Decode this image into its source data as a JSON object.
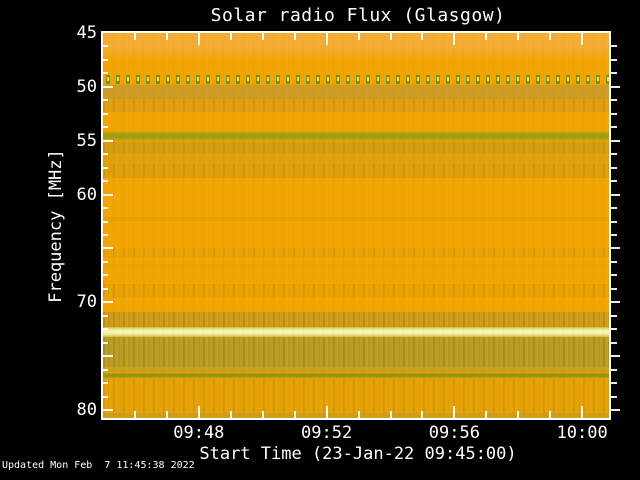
{
  "title": "Solar radio Flux (Glasgow)",
  "x_axis": {
    "title": "Start Time (23-Jan-22 09:45:00)"
  },
  "y_axis": {
    "title": "Frequency [MHz]"
  },
  "footer": {
    "updated": "Updated Mon Feb  7 11:45:38 2022"
  },
  "colors": {
    "page_background": "#000000",
    "text": "#FFFFFF",
    "frame": "#FFFFFF",
    "plot_background": "#F3A504"
  },
  "chart_data": {
    "type": "heatmap",
    "subtype": "radio-spectrogram",
    "title": "Solar radio Flux (Glasgow)",
    "xlabel": "Start Time (23-Jan-22 09:45:00)",
    "ylabel": "Frequency [MHz]",
    "x_start_hhmm": "09:45",
    "x_range_minutes": [
      0,
      15.84
    ],
    "y_range_mhz": [
      45,
      80.74
    ],
    "background_color": "#F3A504",
    "x_ticks": {
      "major": [
        {
          "m": 3,
          "label": "09:48"
        },
        {
          "m": 7,
          "label": "09:52"
        },
        {
          "m": 11,
          "label": "09:56"
        },
        {
          "m": 15,
          "label": "10:00"
        }
      ],
      "minor": [
        1,
        2,
        4,
        5,
        6,
        8,
        9,
        10,
        12,
        13,
        14
      ]
    },
    "y_ticks": {
      "minor_step_mhz": 1.25,
      "major_step_mhz": 5
    },
    "y_labels": [
      {
        "f": 45,
        "label": "45"
      },
      {
        "f": 50,
        "label": "50"
      },
      {
        "f": 55,
        "label": "55"
      },
      {
        "f": 60,
        "label": "60"
      },
      {
        "f": 70,
        "label": "70"
      },
      {
        "f": 80,
        "label": "80"
      }
    ],
    "bands": [
      {
        "name": "bright-upper-band",
        "f1": 45.0,
        "f2": 47.5,
        "type": "solid",
        "color": "#F7AD33",
        "fade": "down"
      },
      {
        "name": "dotted-interference-line",
        "f1": 48.9,
        "f2": 49.73,
        "type": "dots",
        "color": "#7C8C14",
        "color2": "#E3E94E"
      },
      {
        "name": "olive-band-50mhz",
        "f1": 49.83,
        "f2": 51.13,
        "type": "solid",
        "color": "#CF9C26"
      },
      {
        "name": "striped-band-51mhz",
        "f1": 51.13,
        "f2": 52.33,
        "type": "stripes",
        "color": "#E49F10"
      },
      {
        "name": "green-line-55mhz",
        "f1": 54.0,
        "f2": 55.1,
        "type": "solid",
        "color": "#9CA00F",
        "fade": "both"
      },
      {
        "name": "dark-band-55mhz",
        "f1": 55.1,
        "f2": 56.23,
        "type": "stripes",
        "color": "#D89E12"
      },
      {
        "name": "faint-band-56mhz",
        "f1": 56.23,
        "f2": 57.16,
        "type": "solid",
        "color": "#E2A10B"
      },
      {
        "name": "faint-striped-band-57mhz",
        "f1": 57.16,
        "f2": 58.46,
        "type": "stripes",
        "color": "#E0A00C"
      },
      {
        "name": "faint-line-62mhz",
        "f1": 62.08,
        "f2": 62.45,
        "type": "solid",
        "color": "#E5A107"
      },
      {
        "name": "faint-band-65mhz",
        "f1": 64.96,
        "f2": 65.8,
        "type": "stripes",
        "color": "#ECA303"
      },
      {
        "name": "faint-line-66mhz",
        "f1": 66.45,
        "f2": 66.82,
        "type": "solid",
        "color": "#EAA205"
      },
      {
        "name": "faint-band-69mhz",
        "f1": 68.3,
        "f2": 69.6,
        "type": "stripes",
        "color": "#EBA304"
      },
      {
        "name": "pre-band-71mhz",
        "f1": 70.9,
        "f2": 72.29,
        "type": "stripes",
        "color": "#D49D18",
        "strong": true
      },
      {
        "name": "bright-yellow-line-72mhz",
        "f1": 72.29,
        "f2": 73.22,
        "type": "brightline",
        "color": "#F6F6B4",
        "color2": "#C2C436"
      },
      {
        "name": "olive-striped-band-74mhz",
        "f1": 73.22,
        "f2": 76.01,
        "type": "stripes",
        "color": "#BB9E26",
        "strong": true
      },
      {
        "name": "transition-band-76mhz",
        "f1": 76.01,
        "f2": 76.45,
        "type": "solid",
        "color": "#CCA01A"
      },
      {
        "name": "dark-green-line-77mhz",
        "f1": 76.45,
        "f2": 77.15,
        "type": "solid",
        "color": "#8F9715",
        "fade": "both"
      },
      {
        "name": "lower-striped-band-78mhz",
        "f1": 77.15,
        "f2": 80.28,
        "type": "stripes",
        "color": "#E7A306"
      },
      {
        "name": "bottom-edge-band",
        "f1": 80.28,
        "f2": 80.74,
        "type": "solid",
        "color": "#D19D19"
      }
    ]
  }
}
